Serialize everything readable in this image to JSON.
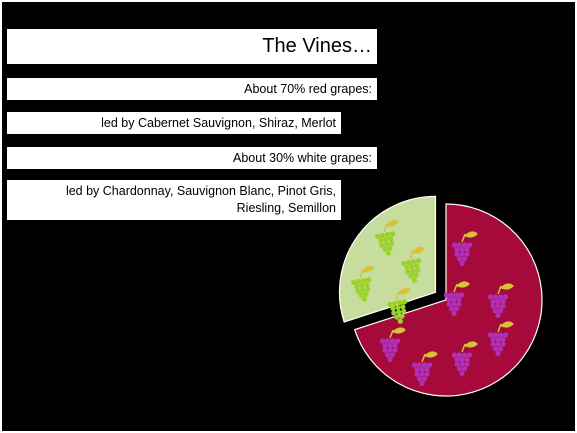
{
  "slide": {
    "title": "The Vines…",
    "lines": [
      "About 70% red grapes:",
      "led by Cabernet Sauvignon, Shiraz, Merlot",
      "About 30% white grapes:"
    ],
    "last_line_parts": [
      "led by Chardonnay, Sauvignon Blanc, Pinot Gris,",
      "Riesling, Semillon"
    ]
  },
  "graphic": {
    "red_share_percent": 70,
    "white_share_percent": 30,
    "red_color": "#a50a3a",
    "white_color": "#c6dd9e",
    "red_grape_color": "#b030b8",
    "white_grape_color": "#9bd12a",
    "leaf_color": "#d9c23a",
    "icon": "grape-cluster-icon"
  }
}
